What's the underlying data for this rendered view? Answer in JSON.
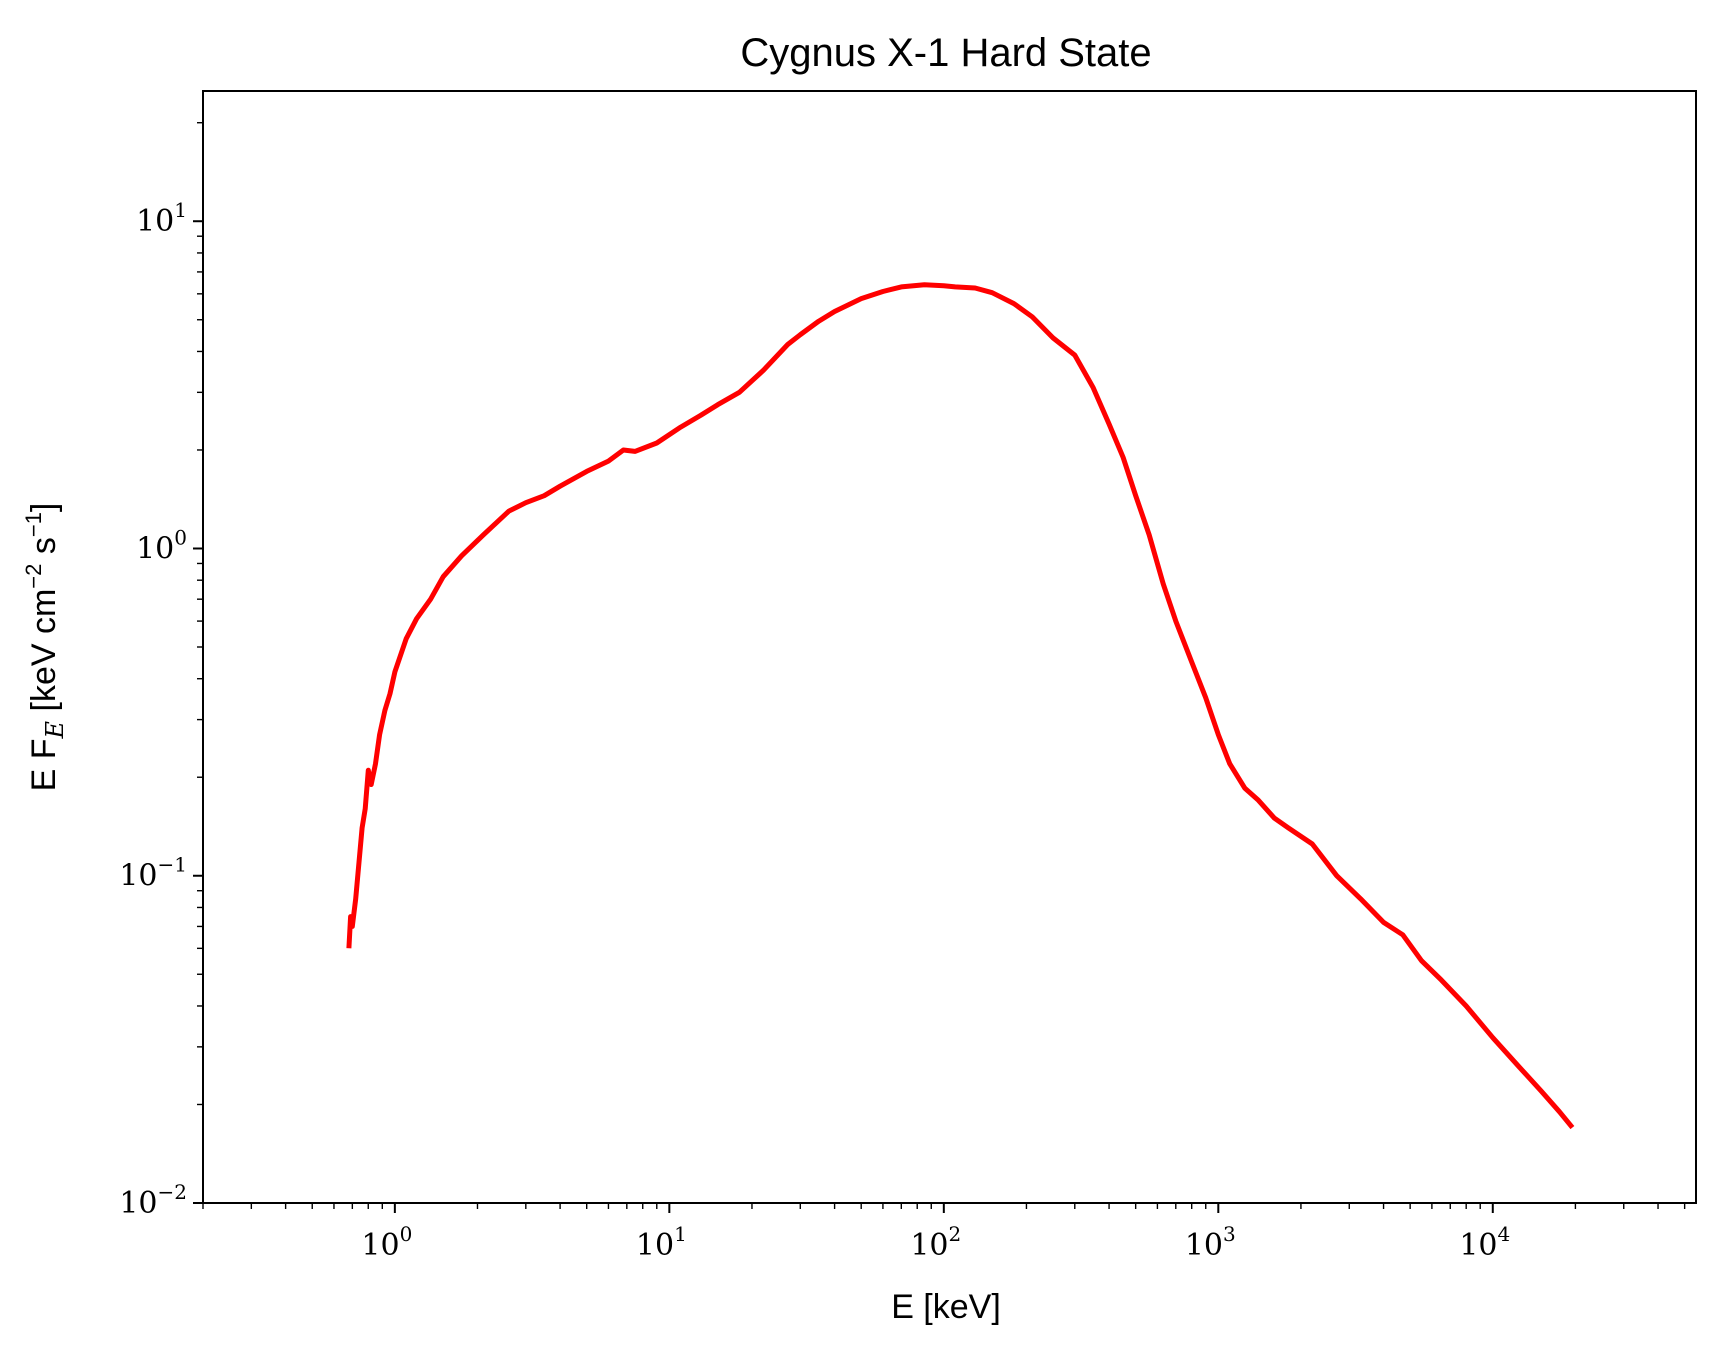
{
  "chart_data": {
    "type": "line",
    "title": "Cygnus X-1 Hard State",
    "xlabel": "E [keV]",
    "ylabel": {
      "main": "E F",
      "sub": "E",
      "mid": " [keV cm",
      "sup1": "−2",
      "mid2": " s",
      "sup2": "−1",
      "end": "]"
    },
    "xscale": "log",
    "yscale": "log",
    "xlim": [
      0.2,
      55000
    ],
    "ylim": [
      0.01,
      25
    ],
    "grid": false,
    "line_color": "#ff0000",
    "x_ticks": [
      {
        "base": "10",
        "exp": "0",
        "value": 1
      },
      {
        "base": "10",
        "exp": "1",
        "value": 10
      },
      {
        "base": "10",
        "exp": "2",
        "value": 100
      },
      {
        "base": "10",
        "exp": "3",
        "value": 1000
      },
      {
        "base": "10",
        "exp": "4",
        "value": 10000
      }
    ],
    "y_ticks": [
      {
        "base": "10",
        "exp": "−2",
        "value": 0.01
      },
      {
        "base": "10",
        "exp": "−1",
        "value": 0.1
      },
      {
        "base": "10",
        "exp": "0",
        "value": 1
      },
      {
        "base": "10",
        "exp": "1",
        "value": 10
      }
    ],
    "series": [
      {
        "x": [
          0.68,
          0.69,
          0.7,
          0.72,
          0.74,
          0.76,
          0.78,
          0.8,
          0.82,
          0.85,
          0.88,
          0.92,
          0.96,
          1.0,
          1.1,
          1.2,
          1.35,
          1.5,
          1.75,
          2.1,
          2.6,
          3.0,
          3.5,
          4.0,
          5.0,
          6.0,
          6.8,
          7.5,
          9.0,
          11.0,
          13.0,
          15.0,
          18.0,
          22.0,
          27.0,
          30.0,
          35.0,
          40.0,
          50.0,
          60.0,
          70.0,
          85.0,
          100.0,
          110.0,
          130.0,
          150.0,
          180.0,
          210.0,
          250.0,
          300.0,
          350.0,
          400.0,
          450.0,
          500.0,
          560.0,
          630.0,
          700.0,
          800.0,
          900.0,
          1000.0,
          1100.0,
          1250.0,
          1400.0,
          1600.0,
          1800.0,
          2200.0,
          2700.0,
          3300.0,
          4000.0,
          4700.0,
          5500.0,
          6500.0,
          8000.0,
          10000.0,
          12500.0,
          15000.0,
          17500.0,
          19500.0
        ],
        "y": [
          0.06,
          0.075,
          0.07,
          0.085,
          0.11,
          0.14,
          0.16,
          0.21,
          0.19,
          0.22,
          0.27,
          0.32,
          0.36,
          0.42,
          0.53,
          0.61,
          0.7,
          0.82,
          0.95,
          1.1,
          1.3,
          1.38,
          1.45,
          1.55,
          1.72,
          1.85,
          2.0,
          1.98,
          2.1,
          2.35,
          2.55,
          2.75,
          3.0,
          3.5,
          4.2,
          4.5,
          4.95,
          5.3,
          5.8,
          6.1,
          6.3,
          6.4,
          6.35,
          6.3,
          6.25,
          6.05,
          5.6,
          5.1,
          4.4,
          3.9,
          3.1,
          2.4,
          1.9,
          1.45,
          1.1,
          0.78,
          0.6,
          0.45,
          0.35,
          0.27,
          0.22,
          0.185,
          0.17,
          0.15,
          0.14,
          0.125,
          0.1,
          0.085,
          0.072,
          0.066,
          0.055,
          0.048,
          0.04,
          0.032,
          0.026,
          0.022,
          0.019,
          0.017
        ]
      }
    ]
  }
}
